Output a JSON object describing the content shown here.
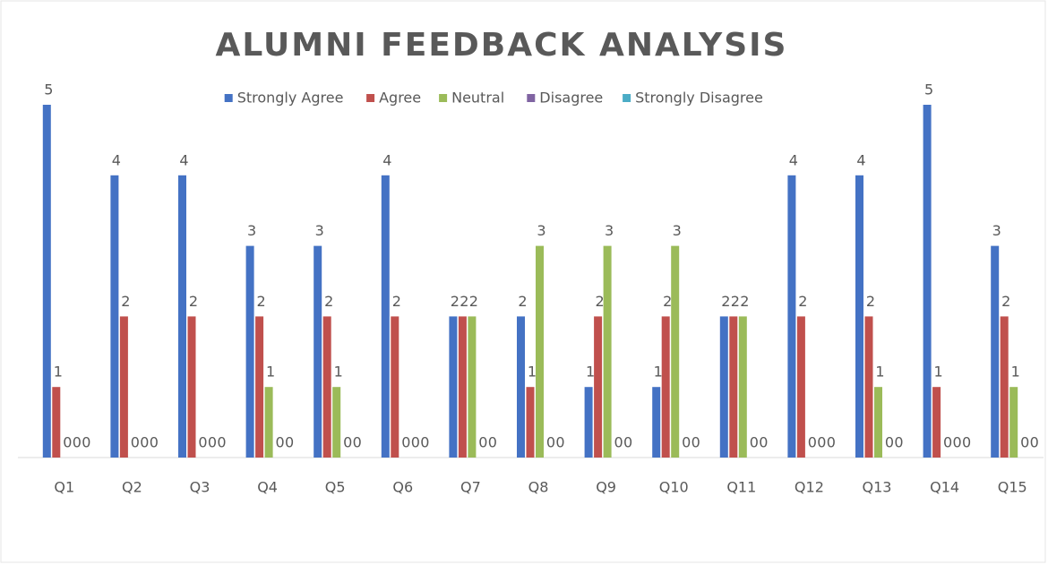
{
  "chart_data": {
    "type": "bar",
    "title": "ALUMNI FEEDBACK ANALYSIS",
    "categories": [
      "Q1",
      "Q2",
      "Q3",
      "Q4",
      "Q5",
      "Q6",
      "Q7",
      "Q8",
      "Q9",
      "Q10",
      "Q11",
      "Q12",
      "Q13",
      "Q14",
      "Q15"
    ],
    "series": [
      {
        "name": "Strongly Agree",
        "color": "#4472c4",
        "values": [
          5,
          4,
          4,
          3,
          3,
          4,
          2,
          2,
          1,
          1,
          2,
          4,
          4,
          5,
          3
        ]
      },
      {
        "name": "Agree",
        "color": "#c0504d",
        "values": [
          1,
          2,
          2,
          2,
          2,
          2,
          2,
          1,
          2,
          2,
          2,
          2,
          2,
          1,
          2
        ]
      },
      {
        "name": "Neutral",
        "color": "#9bbb59",
        "values": [
          0,
          0,
          0,
          1,
          1,
          0,
          2,
          3,
          3,
          3,
          2,
          0,
          1,
          0,
          1
        ]
      },
      {
        "name": "Disagree",
        "color": "#8064a2",
        "values": [
          0,
          0,
          0,
          0,
          0,
          0,
          0,
          0,
          0,
          0,
          0,
          0,
          0,
          0,
          0
        ]
      },
      {
        "name": "Strongly Disagree",
        "color": "#4bacc6",
        "values": [
          0,
          0,
          0,
          0,
          0,
          0,
          0,
          0,
          0,
          0,
          0,
          0,
          0,
          0,
          0
        ]
      }
    ],
    "ylim": [
      0,
      5
    ],
    "legend": "top"
  }
}
